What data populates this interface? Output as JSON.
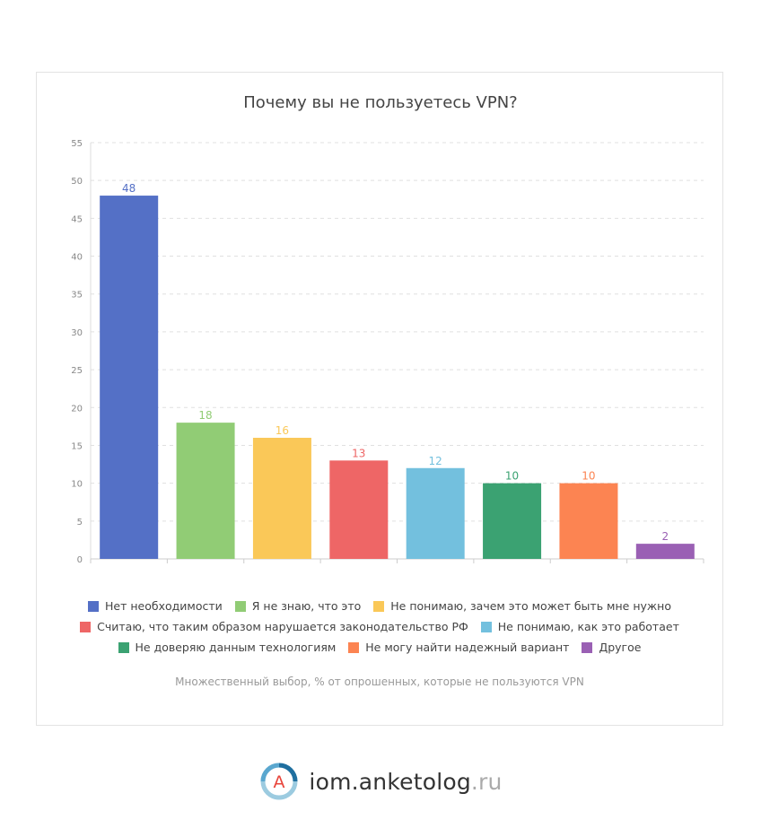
{
  "chart_data": {
    "type": "bar",
    "title": "Почему вы не пользуетесь VPN?",
    "categories": [
      "Нет необходимости",
      "Я не знаю, что это",
      "Не понимаю, зачем это может быть мне нужно",
      "Считаю, что таким образом нарушается законодательство РФ",
      "Не понимаю, как это работает",
      "Не доверяю данным технологиям",
      "Не могу найти надежный вариант",
      "Другое"
    ],
    "values": [
      48,
      18,
      16,
      13,
      12,
      10,
      10,
      2
    ],
    "colors": [
      "#5470c6",
      "#91cc75",
      "#fac858",
      "#ee6666",
      "#73c0de",
      "#3ba272",
      "#fc8452",
      "#9a60b4"
    ],
    "ylim": [
      0,
      55
    ],
    "yticks": [
      0,
      5,
      10,
      15,
      20,
      25,
      30,
      35,
      40,
      45,
      50,
      55
    ],
    "grid": true,
    "legend_position": "bottom",
    "note": "Множественный выбор, % от опрошенных, которые не пользуются VPN"
  },
  "footer": {
    "logo_letter": "A",
    "site": "iom.anketolog",
    "tld": ".ru"
  }
}
